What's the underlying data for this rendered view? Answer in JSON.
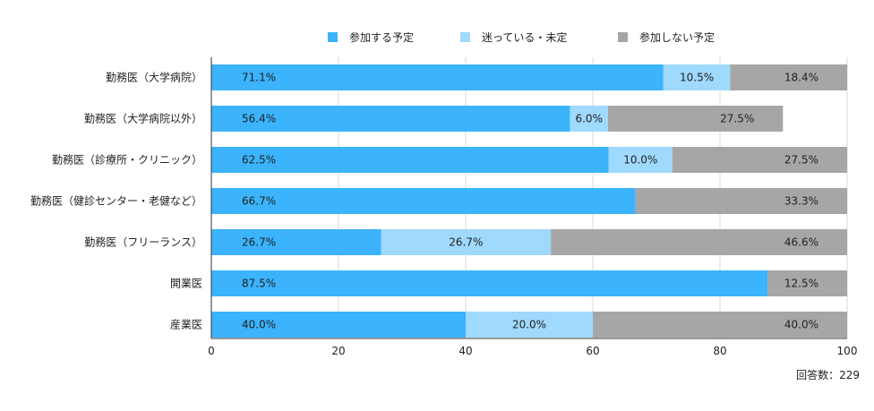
{
  "chart_data": {
    "type": "bar",
    "orientation": "horizontal",
    "stacked": true,
    "categories": [
      "勤務医（大学病院）",
      "勤務医（大学病院以外）",
      "勤務医（診療所・クリニック）",
      "勤務医（健診センター・老健など）",
      "勤務医（フリーランス）",
      "開業医",
      "産業医"
    ],
    "series": [
      {
        "name": "参加する予定",
        "color": "#3bb3fd",
        "values": [
          71.1,
          56.4,
          62.5,
          66.7,
          26.7,
          87.5,
          40.0
        ],
        "labels": [
          "71.1%",
          "56.4%",
          "62.5%",
          "66.7%",
          "26.7%",
          "87.5%",
          "40.0%"
        ]
      },
      {
        "name": "迷っている・未定",
        "color": "#9fd9fd",
        "values": [
          10.5,
          6.0,
          10.0,
          0,
          26.7,
          0,
          20.0
        ],
        "labels": [
          "10.5%",
          "6.0%",
          "10.0%",
          "",
          "26.7%",
          "",
          "20.0%"
        ]
      },
      {
        "name": "参加しない予定",
        "color": "#a6a6a6",
        "values": [
          18.4,
          27.5,
          27.5,
          33.3,
          46.6,
          12.5,
          40.0
        ],
        "labels": [
          "18.4%",
          "27.5%",
          "27.5%",
          "33.3%",
          "46.6%",
          "12.5%",
          "40.0%"
        ]
      }
    ],
    "x_ticks": [
      "0",
      "20",
      "40",
      "60",
      "80",
      "100"
    ],
    "xlim": [
      0,
      100
    ],
    "grid": true,
    "legend_position": "top",
    "note": "回答数：229"
  }
}
